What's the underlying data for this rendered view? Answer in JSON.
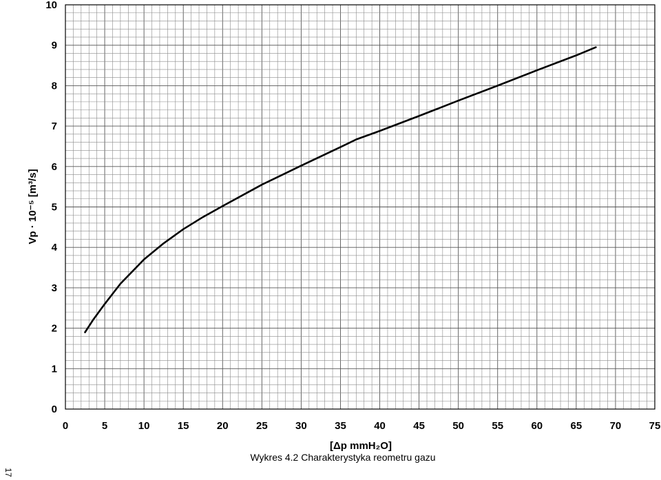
{
  "chart_data": {
    "type": "line",
    "title": "",
    "xlabel": "[Δp mmH₂O]",
    "ylabel": "Vp · 10⁻⁵ [m³/s]",
    "xlim": [
      0,
      75
    ],
    "ylim": [
      0,
      10
    ],
    "grid": true,
    "x_ticks": [
      "0",
      "5",
      "10",
      "15",
      "20",
      "25",
      "30",
      "35",
      "40",
      "45",
      "50",
      "55",
      "60",
      "65",
      "70",
      "75"
    ],
    "y_ticks": [
      "0",
      "1",
      "2",
      "3",
      "4",
      "5",
      "6",
      "7",
      "8",
      "9",
      "10"
    ],
    "series": [
      {
        "color": "#000000",
        "x": [
          2.5,
          3.5,
          5,
          7,
          10,
          12.5,
          15,
          17.5,
          20,
          25,
          30,
          35,
          37,
          40,
          45,
          50,
          55,
          60,
          65,
          67.5
        ],
        "y": [
          1.9,
          2.2,
          2.6,
          3.1,
          3.7,
          4.1,
          4.45,
          4.75,
          5.02,
          5.55,
          6.02,
          6.48,
          6.67,
          6.88,
          7.25,
          7.63,
          8.0,
          8.38,
          8.75,
          8.95
        ]
      }
    ]
  },
  "caption": "Wykres 4.2 Charakterystyka reometru gazu",
  "page_number": "17"
}
